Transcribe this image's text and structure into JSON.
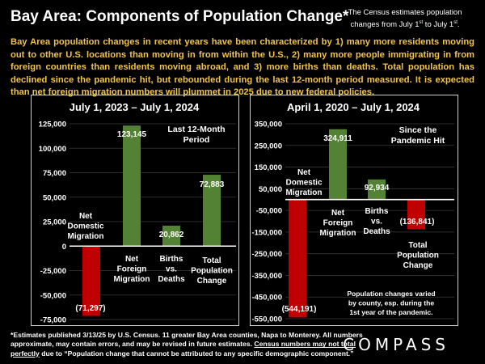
{
  "header": {
    "title": "Bay Area:  Components of Population Change*",
    "note_line1": "The Census estimates population",
    "note_line2": "changes from July 1st to July 1st."
  },
  "intro": "Bay Area population changes in recent years have been characterized by 1) many more residents moving out to other U.S. locations than moving in from within the U.S., 2) many more people immigrating in from foreign countries than residents moving abroad, and 3) more births than deaths. Total population has declined since the pandemic hit, but rebounded during the last 12-month period measured.  It is expected than net foreign migration numbers will plummet in 2025 due to new federal policies.",
  "chart_data": [
    {
      "type": "bar",
      "title": "July 1, 2023 – July 1, 2024",
      "annotation": "Last 12-Month Period",
      "categories": [
        "Net Domestic Migration",
        "Net Foreign Migration",
        "Births vs. Deaths",
        "Total Population Change"
      ],
      "values": [
        -71297,
        123145,
        20862,
        72883
      ],
      "value_labels": [
        "(71,297)",
        "123,145",
        "20,862",
        "72,883"
      ],
      "colors": [
        "#c00000",
        "#548235",
        "#548235",
        "#548235"
      ],
      "ylim": [
        -75000,
        125000
      ],
      "yticks": [
        "125,000",
        "100,000",
        "75,000",
        "50,000",
        "25,000",
        "0",
        "-25,000",
        "-50,000",
        "-75,000"
      ],
      "ytick_values": [
        125000,
        100000,
        75000,
        50000,
        25000,
        0,
        -25000,
        -50000,
        -75000
      ],
      "grid": true
    },
    {
      "type": "bar",
      "title": "April 1, 2020 – July 1, 2024",
      "annotation": "Since the Pandemic Hit",
      "note": "Population changes varied by county, esp. during the 1st year of the pandemic.",
      "categories": [
        "Net Domestic Migration",
        "Net Foreign Migration",
        "Births vs. Deaths",
        "Total Population Change"
      ],
      "values": [
        -544191,
        324911,
        92934,
        -136841
      ],
      "value_labels": [
        "(544,191)",
        "324,911",
        "92,934",
        "(136,841)"
      ],
      "colors": [
        "#c00000",
        "#548235",
        "#548235",
        "#c00000"
      ],
      "ylim": [
        -550000,
        350000
      ],
      "yticks": [
        "350,000",
        "250,000",
        "150,000",
        "50,000",
        "-50,000",
        "-150,000",
        "-250,000",
        "-350,000",
        "-450,000",
        "-550,000"
      ],
      "ytick_values": [
        350000,
        250000,
        150000,
        50000,
        -50000,
        -150000,
        -250000,
        -350000,
        -450000,
        -550000
      ],
      "grid": true
    }
  ],
  "footer": {
    "text1": "*Estimates published 3/13/25 by U.S. Census. 11 greater Bay Area counties, Napa to Monterey. All numbers approximate, may contain errors, and may be revised in future estimates. ",
    "underlined": "Census numbers may not total perfectly",
    "text2": " due to “Population change that cannot be attributed to any specific demographic component.”"
  },
  "logo": "COMPASS"
}
